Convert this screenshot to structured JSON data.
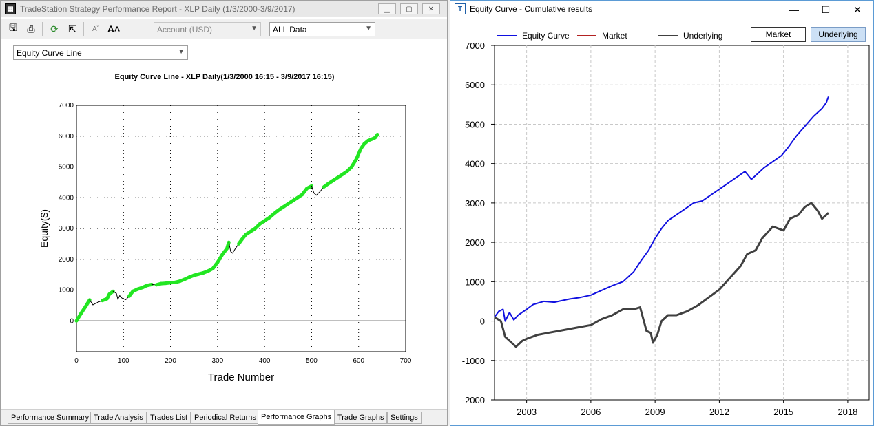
{
  "left_window": {
    "title": "TradeStation Strategy Performance Report - XLP Daily (1/3/2000-3/9/2017)",
    "toolbar": {
      "account_value": "Account (USD)",
      "range_value": "ALL Data",
      "icons": [
        "save-icon",
        "print-icon",
        "refresh-icon",
        "export-icon",
        "font-decrease-icon",
        "font-increase-icon"
      ]
    },
    "graph_type_value": "Equity Curve Line",
    "chart_title": "Equity Curve Line - XLP Daily(1/3/2000 16:15 - 3/9/2017 16:15)",
    "ylabel": "Equity($)",
    "xlabel": "Trade Number",
    "tabs": [
      "Performance Summary",
      "Trade Analysis",
      "Trades List",
      "Periodical Returns",
      "Performance Graphs",
      "Trade Graphs",
      "Settings"
    ],
    "active_tab": "Performance Graphs",
    "chart_data": {
      "type": "line",
      "title": "Equity Curve Line - XLP Daily(1/3/2000 16:15 - 3/9/2017 16:15)",
      "xlabel": "Trade Number",
      "ylabel": "Equity($)",
      "xlim": [
        0,
        700
      ],
      "ylim": [
        -1000,
        7000
      ],
      "x_ticks": [
        "0",
        "100",
        "200",
        "300",
        "400",
        "500",
        "600",
        "700"
      ],
      "y_ticks": [
        "7000",
        "6000",
        "5000",
        "4000",
        "3000",
        "2000",
        "1000",
        "0"
      ],
      "grid": true,
      "colors": {
        "new_high": "#22e622",
        "drawdown": "#000000"
      },
      "series": [
        {
          "x": [
            0,
            10,
            20,
            28,
            35,
            45,
            55,
            65,
            70,
            78,
            85,
            88,
            92,
            98,
            105,
            112,
            120,
            130,
            140,
            150,
            160,
            170,
            180,
            190,
            200,
            210,
            220,
            230,
            240,
            250,
            260,
            270,
            280,
            290,
            300,
            310,
            320,
            324,
            328,
            332,
            338,
            345,
            352,
            360,
            370,
            380,
            390,
            400,
            410,
            420,
            430,
            440,
            450,
            460,
            470,
            480,
            490,
            500,
            505,
            510,
            518,
            526,
            535,
            545,
            555,
            565,
            575,
            585,
            595,
            605,
            612,
            620,
            628,
            635,
            640
          ],
          "y": [
            0,
            250,
            480,
            680,
            520,
            600,
            660,
            720,
            870,
            960,
            890,
            700,
            820,
            720,
            690,
            800,
            960,
            1030,
            1080,
            1150,
            1180,
            1170,
            1210,
            1220,
            1240,
            1250,
            1290,
            1350,
            1420,
            1480,
            1520,
            1560,
            1620,
            1700,
            1900,
            2150,
            2350,
            2550,
            2250,
            2200,
            2350,
            2500,
            2650,
            2800,
            2900,
            3000,
            3150,
            3250,
            3350,
            3480,
            3600,
            3700,
            3800,
            3900,
            4000,
            4100,
            4300,
            4380,
            4150,
            4080,
            4200,
            4350,
            4450,
            4550,
            4650,
            4750,
            4850,
            5000,
            5250,
            5600,
            5750,
            5850,
            5900,
            5950,
            6050
          ]
        }
      ]
    }
  },
  "right_window": {
    "title": "Equity Curve - Cumulative results",
    "legend": [
      "Equity Curve",
      "Market",
      "Underlying"
    ],
    "buttons": [
      "Market",
      "Underlying"
    ],
    "active_button": "Underlying",
    "chart_data": {
      "type": "line",
      "xlim": [
        2001.5,
        2019
      ],
      "ylim": [
        -2000,
        7000
      ],
      "x_ticks": [
        "2003",
        "2006",
        "2009",
        "2012",
        "2015",
        "2018"
      ],
      "y_ticks": [
        "7000",
        "6000",
        "5000",
        "4000",
        "3000",
        "2000",
        "1000",
        "0",
        "-1000",
        "-2000"
      ],
      "grid": true,
      "series": [
        {
          "name": "Equity Curve",
          "color": "#1010e0",
          "x": [
            2001.5,
            2001.7,
            2001.9,
            2002.0,
            2002.2,
            2002.4,
            2002.6,
            2003.0,
            2003.3,
            2003.8,
            2004.3,
            2005.0,
            2005.5,
            2006.0,
            2006.5,
            2007.0,
            2007.5,
            2008.0,
            2008.3,
            2008.7,
            2009.0,
            2009.3,
            2009.6,
            2010.0,
            2010.4,
            2010.8,
            2011.2,
            2011.6,
            2012.0,
            2012.4,
            2012.8,
            2013.2,
            2013.5,
            2013.8,
            2014.1,
            2014.5,
            2014.9,
            2015.2,
            2015.6,
            2016.0,
            2016.4,
            2016.8,
            2017.0,
            2017.1
          ],
          "y": [
            100,
            250,
            300,
            0,
            220,
            30,
            150,
            300,
            420,
            500,
            480,
            560,
            600,
            660,
            780,
            900,
            1000,
            1250,
            1500,
            1800,
            2100,
            2350,
            2550,
            2700,
            2850,
            3000,
            3050,
            3200,
            3350,
            3500,
            3650,
            3800,
            3600,
            3750,
            3900,
            4050,
            4200,
            4400,
            4700,
            4950,
            5200,
            5400,
            5550,
            5700
          ]
        },
        {
          "name": "Market",
          "color": "#b22222",
          "x": [],
          "y": []
        },
        {
          "name": "Underlying",
          "color": "#404040",
          "x": [
            2001.5,
            2001.8,
            2002.0,
            2002.2,
            2002.5,
            2002.8,
            2003.0,
            2003.5,
            2004.0,
            2004.5,
            2005.0,
            2005.5,
            2006.0,
            2006.5,
            2007.0,
            2007.5,
            2008.0,
            2008.3,
            2008.6,
            2008.8,
            2008.9,
            2009.1,
            2009.3,
            2009.6,
            2010.0,
            2010.5,
            2011.0,
            2011.5,
            2012.0,
            2012.5,
            2013.0,
            2013.3,
            2013.7,
            2014.0,
            2014.5,
            2015.0,
            2015.3,
            2015.7,
            2016.0,
            2016.3,
            2016.6,
            2016.8,
            2017.0,
            2017.1
          ],
          "y": [
            100,
            0,
            -400,
            -500,
            -650,
            -500,
            -450,
            -350,
            -300,
            -250,
            -200,
            -150,
            -100,
            50,
            150,
            300,
            300,
            350,
            -250,
            -300,
            -550,
            -350,
            0,
            150,
            150,
            250,
            400,
            600,
            800,
            1100,
            1400,
            1700,
            1800,
            2100,
            2400,
            2300,
            2600,
            2700,
            2900,
            3000,
            2800,
            2600,
            2700,
            2750
          ]
        }
      ]
    }
  }
}
